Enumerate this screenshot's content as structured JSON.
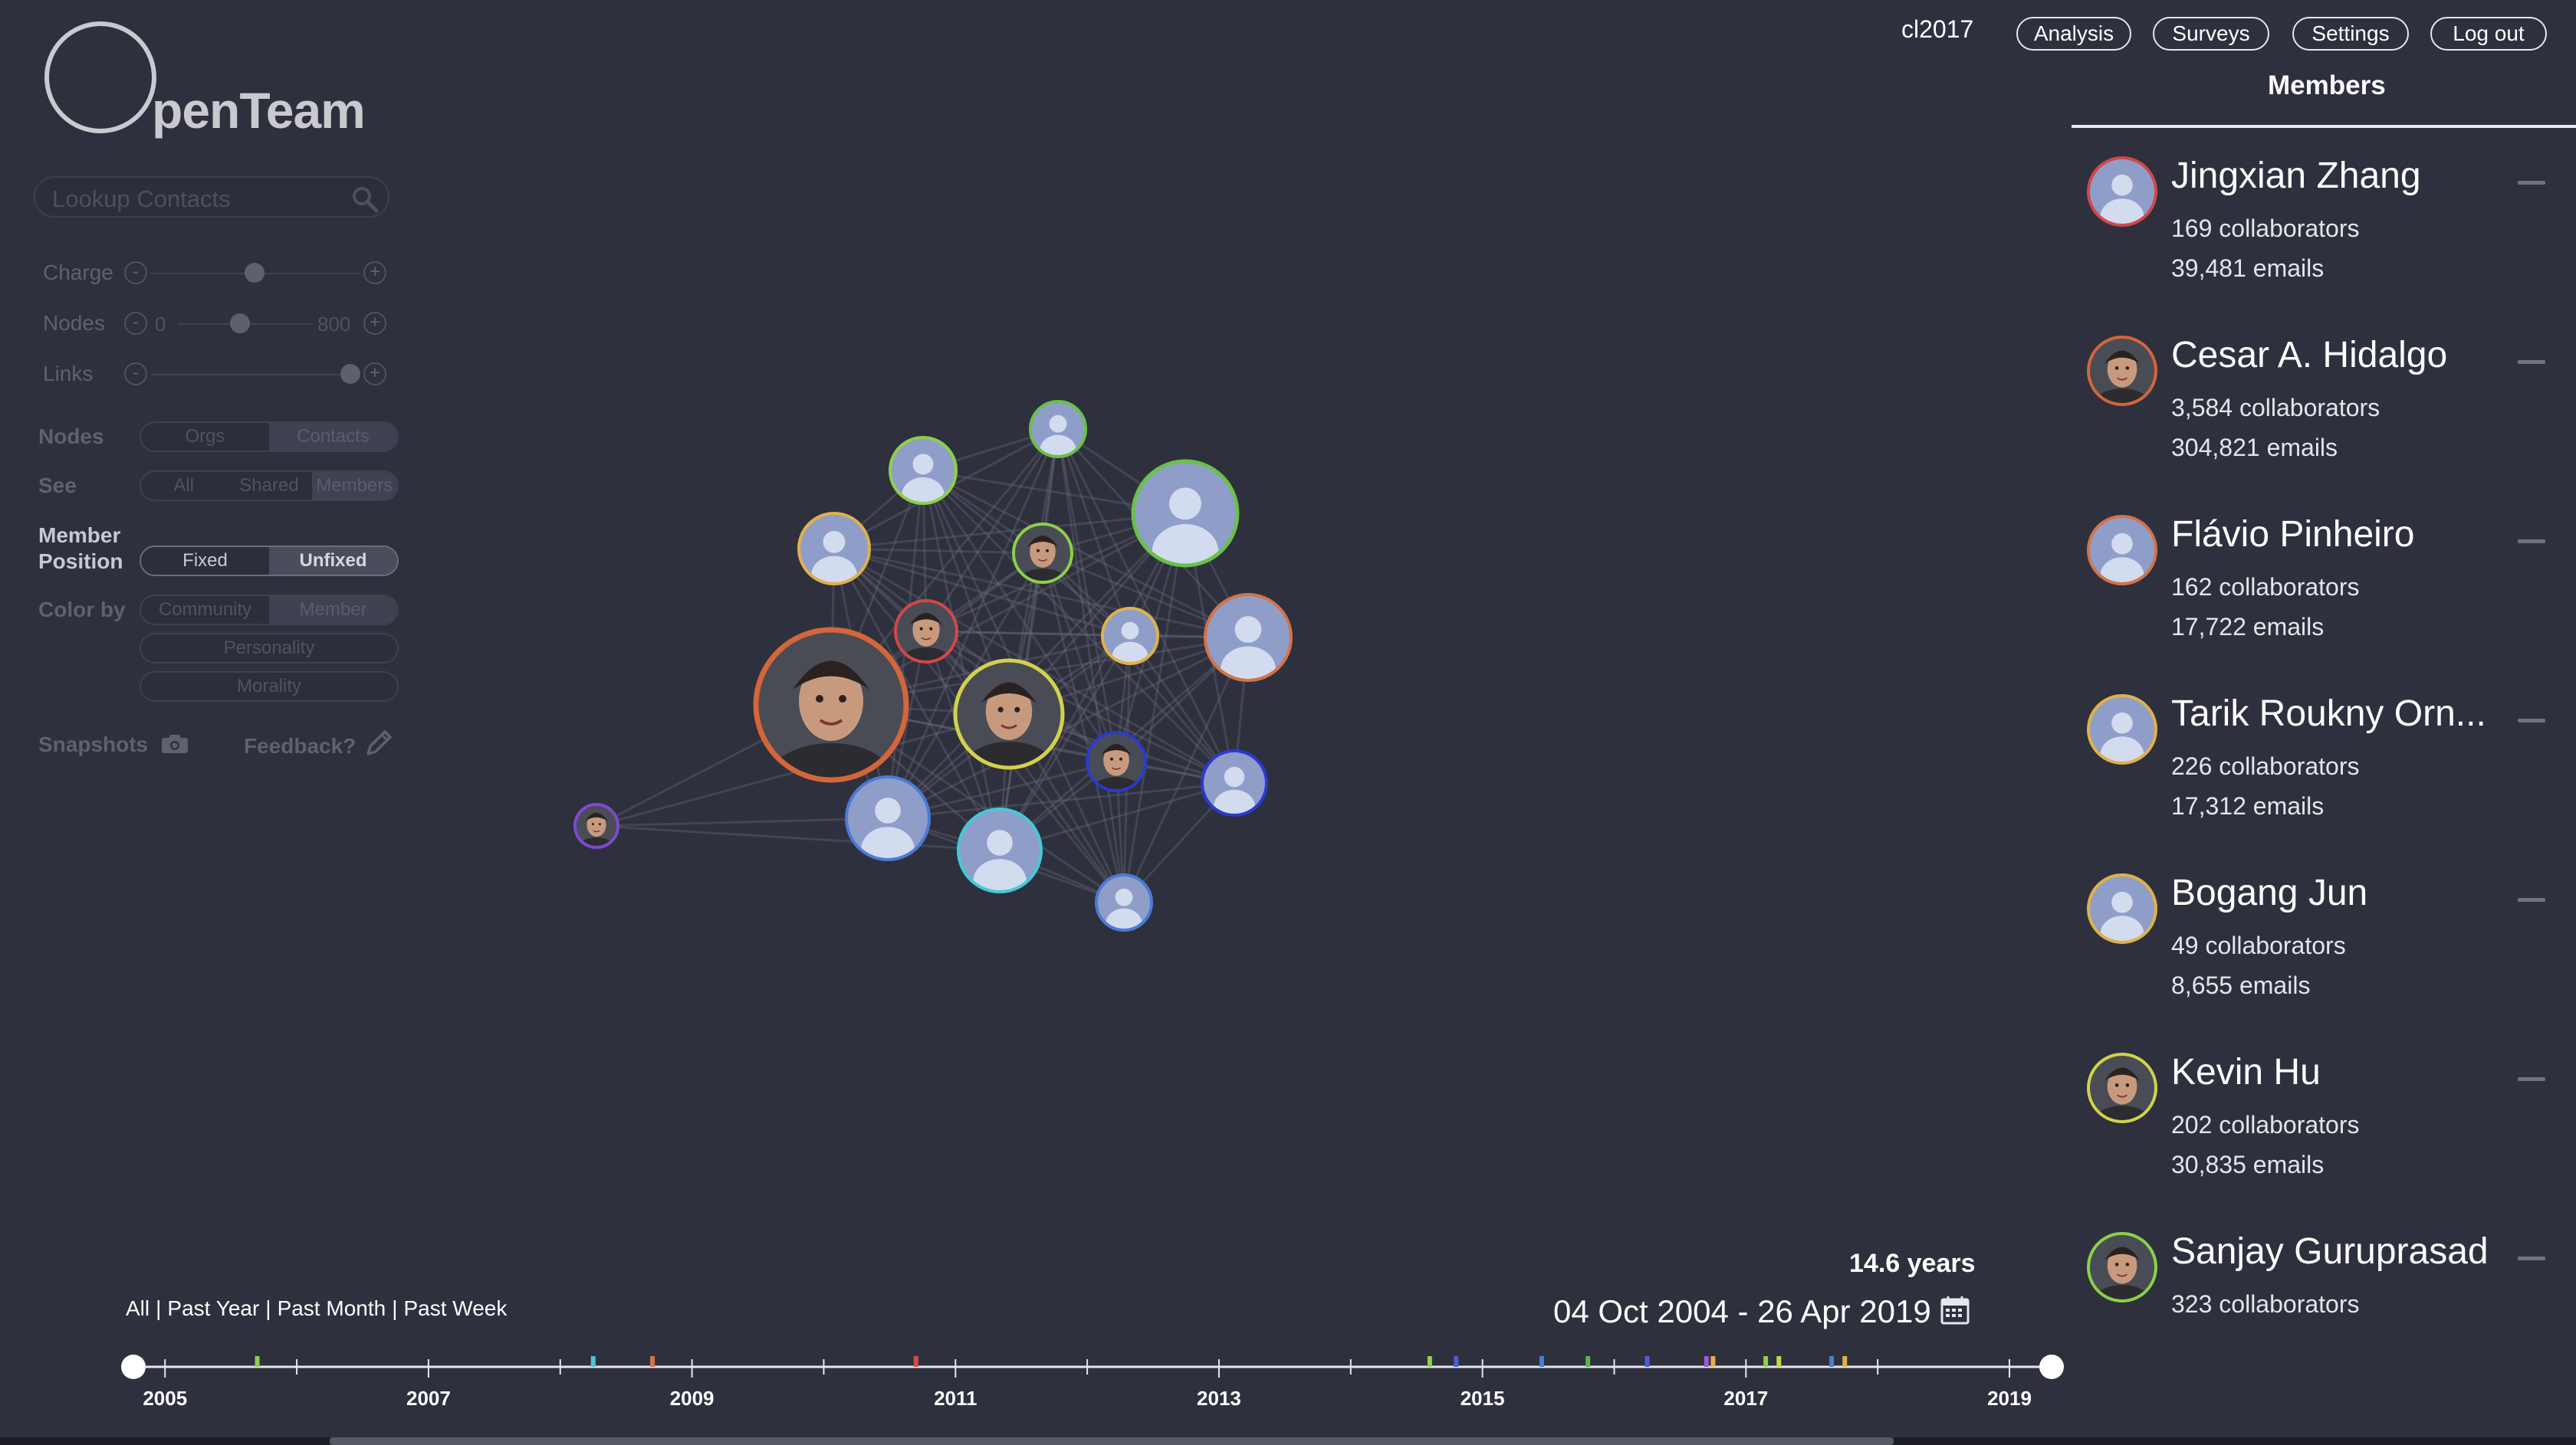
{
  "app": {
    "logo_text": "penTeam",
    "user": "cl2017",
    "nav": [
      "Analysis",
      "Surveys",
      "Settings",
      "Log out"
    ]
  },
  "search": {
    "placeholder": "Lookup Contacts",
    "icon": "search-icon"
  },
  "controls": {
    "charge": {
      "label": "Charge",
      "level": 0.5
    },
    "nodes": {
      "label": "Nodes",
      "min": "0",
      "max": "800",
      "level": 0.46
    },
    "links": {
      "label": "Links",
      "level": 0.96
    },
    "nodes_toggle": {
      "label": "Nodes",
      "options": [
        "Orgs",
        "Contacts"
      ],
      "selected": "Contacts"
    },
    "see_toggle": {
      "label": "See",
      "options": [
        "All",
        "Shared",
        "Members"
      ],
      "selected": "Members"
    },
    "member_position": {
      "label_line1": "Member",
      "label_line2": "Position",
      "options": [
        "Fixed",
        "Unfixed"
      ],
      "selected": "Unfixed"
    },
    "color_by": {
      "label": "Color by",
      "options": [
        "Community",
        "Member"
      ],
      "selected": "Member",
      "extra": [
        "Personality",
        "Morality"
      ]
    },
    "snapshots": {
      "label": "Snapshots",
      "icon": "camera-icon"
    },
    "feedback": {
      "label": "Feedback?",
      "icon": "pencil-icon"
    }
  },
  "timeline": {
    "span_years": "14.6 years",
    "span_dates": "04 Oct 2004 - 26 Apr 2019",
    "calendar_icon": "calendar-icon",
    "ranges": [
      "All",
      "Past Year",
      "Past Month",
      "Past Week"
    ],
    "separator": "|",
    "year_labels": [
      "2005",
      "2007",
      "2009",
      "2011",
      "2013",
      "2015",
      "2017",
      "2019"
    ],
    "start_year": 2004.76,
    "end_year": 2019.32,
    "events": [
      {
        "year": 2005.7,
        "color": "#8cd04a"
      },
      {
        "year": 2008.25,
        "color": "#44c9d6"
      },
      {
        "year": 2008.7,
        "color": "#d3734a"
      },
      {
        "year": 2010.7,
        "color": "#d24b4b"
      },
      {
        "year": 2014.6,
        "color": "#8cd04a"
      },
      {
        "year": 2014.8,
        "color": "#4a5ed6"
      },
      {
        "year": 2015.45,
        "color": "#4a7bd6"
      },
      {
        "year": 2015.8,
        "color": "#5fb34a"
      },
      {
        "year": 2016.25,
        "color": "#4a5ed6"
      },
      {
        "year": 2016.7,
        "color": "#9a5ad8"
      },
      {
        "year": 2016.75,
        "color": "#e0b14a"
      },
      {
        "year": 2017.15,
        "color": "#8cd04a"
      },
      {
        "year": 2017.25,
        "color": "#c6d44a"
      },
      {
        "year": 2017.65,
        "color": "#4a7bd6"
      },
      {
        "year": 2017.75,
        "color": "#e0b14a"
      }
    ]
  },
  "members_panel": {
    "title": "Members",
    "members": [
      {
        "name": "Jingxian Zhang",
        "collaborators": "169 collaborators",
        "emails": "39,481 emails",
        "ring": "#d24848",
        "photo": false
      },
      {
        "name": "Cesar A. Hidalgo",
        "collaborators": "3,584 collaborators",
        "emails": "304,821 emails",
        "ring": "#d3663a",
        "photo": true
      },
      {
        "name": "Flávio Pinheiro",
        "collaborators": "162 collaborators",
        "emails": "17,722 emails",
        "ring": "#d3734a",
        "photo": false
      },
      {
        "name": "Tarik Roukny Orn...",
        "collaborators": "226 collaborators",
        "emails": "17,312 emails",
        "ring": "#e0b14a",
        "photo": false
      },
      {
        "name": "Bogang Jun",
        "collaborators": "49 collaborators",
        "emails": "8,655 emails",
        "ring": "#e0b14a",
        "photo": false
      },
      {
        "name": "Kevin Hu",
        "collaborators": "202 collaborators",
        "emails": "30,835 emails",
        "ring": "#d2d24a",
        "photo": true
      },
      {
        "name": "Sanjay Guruprasad",
        "collaborators": "323 collaborators",
        "emails": "",
        "ring": "#8cd04a",
        "photo": true
      }
    ]
  },
  "graph": {
    "nodes": [
      {
        "ring": "#6ac14a",
        "photo": false
      },
      {
        "ring": "#8cd04a",
        "photo": false
      },
      {
        "ring": "#6ac14a",
        "photo": false
      },
      {
        "ring": "#e0b14a",
        "photo": false
      },
      {
        "ring": "#8cd04a",
        "photo": true
      },
      {
        "ring": "#d24848",
        "photo": true
      },
      {
        "ring": "#e0b14a",
        "photo": false
      },
      {
        "ring": "#d3734a",
        "photo": false
      },
      {
        "ring": "#d3663a",
        "photo": true
      },
      {
        "ring": "#d2d24a",
        "photo": true
      },
      {
        "ring": "#2a3ad0",
        "photo": true
      },
      {
        "ring": "#2a3ad0",
        "photo": false
      },
      {
        "ring": "#4a7bd6",
        "photo": false
      },
      {
        "ring": "#44c9d6",
        "photo": false
      },
      {
        "ring": "#4a7bd6",
        "photo": false
      },
      {
        "ring": "#7a4ad0",
        "photo": true
      }
    ]
  }
}
